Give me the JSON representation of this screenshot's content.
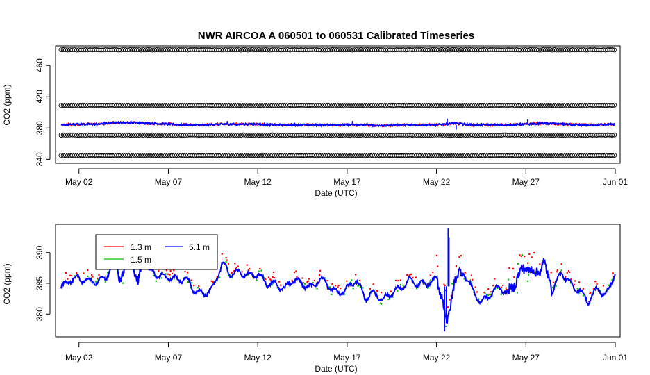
{
  "title": "NWR   AIRCOA  A    060501  to  060531   Calibrated Timeseries",
  "colors": {
    "h1": "#ff0000",
    "h2": "#00c000",
    "h3": "#0000ff",
    "cal": "#000000"
  },
  "chart_data": [
    {
      "type": "line",
      "title": "NWR   AIRCOA  A    060501  to  060531   Calibrated Timeseries",
      "xlabel": "Date (UTC)",
      "ylabel": "CO2 (ppm)",
      "xlim": [
        0,
        31
      ],
      "ylim": [
        335,
        485
      ],
      "x_ticks": [
        {
          "x": 1,
          "label": "May 02"
        },
        {
          "x": 6,
          "label": "May 07"
        },
        {
          "x": 11,
          "label": "May 12"
        },
        {
          "x": 16,
          "label": "May 17"
        },
        {
          "x": 21,
          "label": "May 22"
        },
        {
          "x": 26,
          "label": "May 27"
        },
        {
          "x": 31,
          "label": "Jun 01"
        }
      ],
      "y_ticks": [
        340,
        380,
        420,
        460
      ],
      "y_tick_labels": [
        "340",
        "380",
        "420",
        "460"
      ],
      "x_range": [
        0,
        31
      ],
      "calibration_levels": [
        480,
        409,
        371,
        345
      ],
      "ambient_mean": 384,
      "series": [
        {
          "name": "Ambient",
          "color": "#0000ff",
          "x": [
            0,
            1,
            2,
            3,
            4,
            5,
            6,
            7,
            8,
            9,
            10,
            11,
            12,
            13,
            14,
            15,
            16,
            17,
            18,
            19,
            20,
            21,
            22,
            23,
            24,
            25,
            26,
            27,
            28,
            29,
            30,
            31
          ],
          "y": [
            384,
            385,
            385,
            387,
            387,
            386,
            385,
            384,
            384,
            385,
            385,
            385,
            384,
            384,
            384,
            384,
            384,
            384,
            383,
            384,
            384,
            384,
            386,
            384,
            384,
            384,
            385,
            386,
            385,
            384,
            384,
            385
          ]
        }
      ]
    },
    {
      "type": "scatter",
      "xlabel": "Date (UTC)",
      "ylabel": "CO2 (ppm)",
      "xlim": [
        0,
        31
      ],
      "ylim": [
        376.3,
        394.6
      ],
      "x_ticks": [
        {
          "x": 1,
          "label": "May 02"
        },
        {
          "x": 6,
          "label": "May 07"
        },
        {
          "x": 11,
          "label": "May 12"
        },
        {
          "x": 16,
          "label": "May 17"
        },
        {
          "x": 21,
          "label": "May 22"
        },
        {
          "x": 26,
          "label": "May 27"
        },
        {
          "x": 31,
          "label": "Jun 01"
        }
      ],
      "y_ticks": [
        380,
        385,
        390
      ],
      "y_tick_labels": [
        "380",
        "385",
        "390"
      ],
      "legend": [
        {
          "label": "1.3 m",
          "color": "#ff0000"
        },
        {
          "label": "5.1 m",
          "color": "#0000ff"
        },
        {
          "label": "1.5 m",
          "color": "#00c000"
        }
      ],
      "series": [
        {
          "name": "5.1 m",
          "color": "#0000ff",
          "x": [
            0,
            0.5,
            1,
            1.5,
            2,
            2.5,
            3,
            3.3,
            3.6,
            4,
            4.3,
            4.6,
            5,
            5.5,
            6,
            6.5,
            7,
            7.5,
            8,
            8.5,
            9,
            9.5,
            10,
            10.5,
            11,
            11.5,
            12,
            12.5,
            13,
            13.5,
            14,
            14.5,
            15,
            15.5,
            16,
            16.5,
            17,
            17.5,
            18,
            18.5,
            19,
            19.5,
            20,
            20.5,
            21,
            21.3,
            21.6,
            22,
            22.5,
            23,
            23.5,
            24,
            24.5,
            25,
            25.5,
            26,
            26.5,
            27,
            27.5,
            28,
            28.5,
            29,
            29.5,
            30,
            30.5,
            31
          ],
          "y": [
            384.2,
            385.6,
            385.8,
            385.4,
            385.3,
            385.9,
            389.0,
            386.0,
            387.5,
            388.8,
            384.5,
            389.8,
            387.2,
            386.2,
            386.0,
            385.6,
            385.7,
            383.7,
            383.3,
            384.2,
            388.2,
            386.5,
            386.8,
            386.2,
            386.5,
            385.0,
            384.8,
            384.1,
            385.7,
            384.9,
            384.3,
            385.8,
            384.5,
            383.3,
            384.2,
            385.6,
            382.6,
            383.5,
            382.3,
            383.5,
            384.2,
            385.5,
            384.8,
            385.0,
            385.6,
            383.2,
            378.0,
            385.6,
            387.0,
            384.0,
            381.8,
            383.2,
            384.5,
            383.2,
            385.8,
            387.8,
            386.5,
            388.2,
            384.0,
            386.8,
            384.8,
            383.8,
            382.0,
            384.2,
            383.0,
            386.8
          ]
        }
      ]
    }
  ]
}
